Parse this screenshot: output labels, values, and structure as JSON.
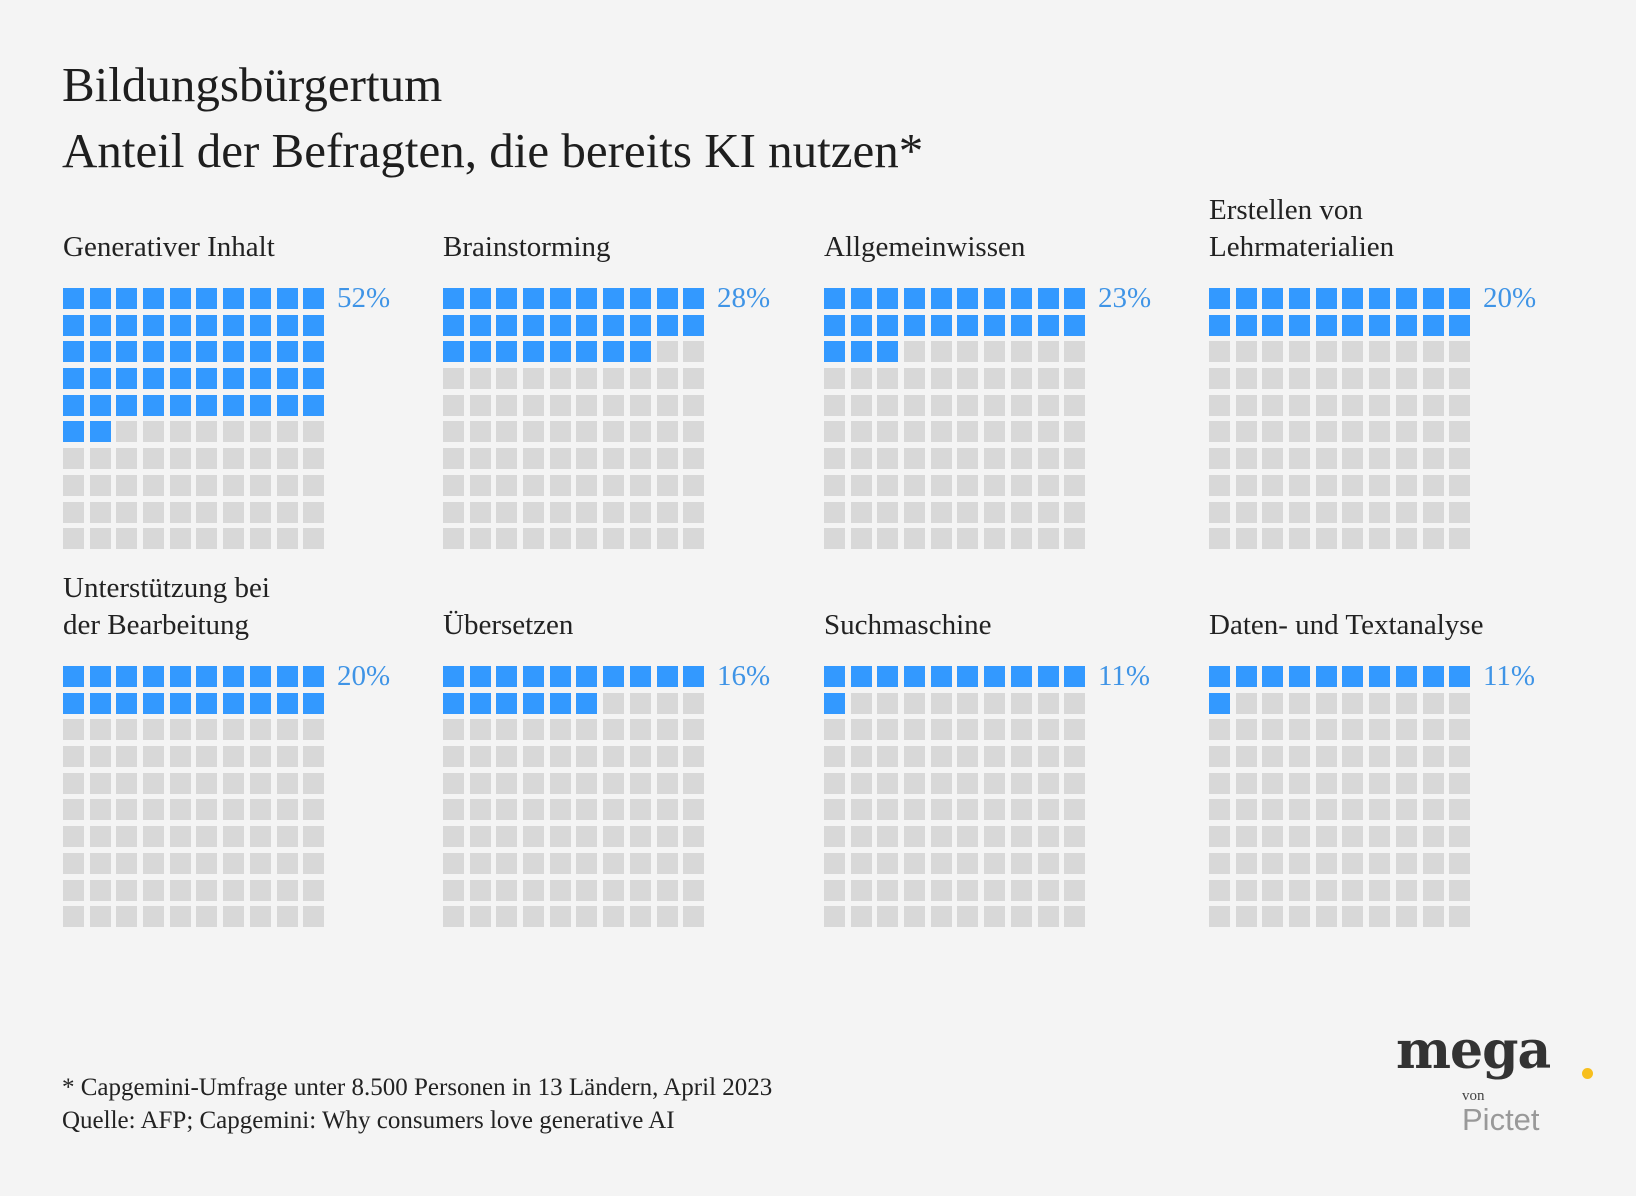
{
  "chart_data": {
    "type": "waffle",
    "title": "Bildungsbürgertum",
    "subtitle": "Anteil der Befragten, die bereits KI nutzen*",
    "grid": [
      10,
      10
    ],
    "colors": {
      "filled": "#3399ff",
      "empty": "#d8d8d8",
      "label": "#3f94e6"
    },
    "panels": [
      {
        "label": [
          "Generativer Inhalt"
        ],
        "value": 52,
        "value_label": "52%"
      },
      {
        "label": [
          "Brainstorming"
        ],
        "value": 28,
        "value_label": "28%"
      },
      {
        "label": [
          "Allgemeinwissen"
        ],
        "value": 23,
        "value_label": "23%"
      },
      {
        "label": [
          "Erstellen von",
          "Lehrmaterialien"
        ],
        "value": 20,
        "value_label": "20%"
      },
      {
        "label": [
          "Unterstützung bei",
          "der Bearbeitung"
        ],
        "value": 20,
        "value_label": "20%"
      },
      {
        "label": [
          "Übersetzen"
        ],
        "value": 16,
        "value_label": "16%"
      },
      {
        "label": [
          "Suchmaschine"
        ],
        "value": 11,
        "value_label": "11%"
      },
      {
        "label": [
          "Daten- und Textanalyse"
        ],
        "value": 11,
        "value_label": "11%"
      }
    ]
  },
  "footer": {
    "note": "* Capgemini-Umfrage unter 8.500 Personen in 13 Ländern, April 2023",
    "source": "Quelle: AFP; Capgemini: Why consumers love generative AI"
  },
  "logo": {
    "name": "mega",
    "von": "von",
    "brand": "Pictet"
  }
}
